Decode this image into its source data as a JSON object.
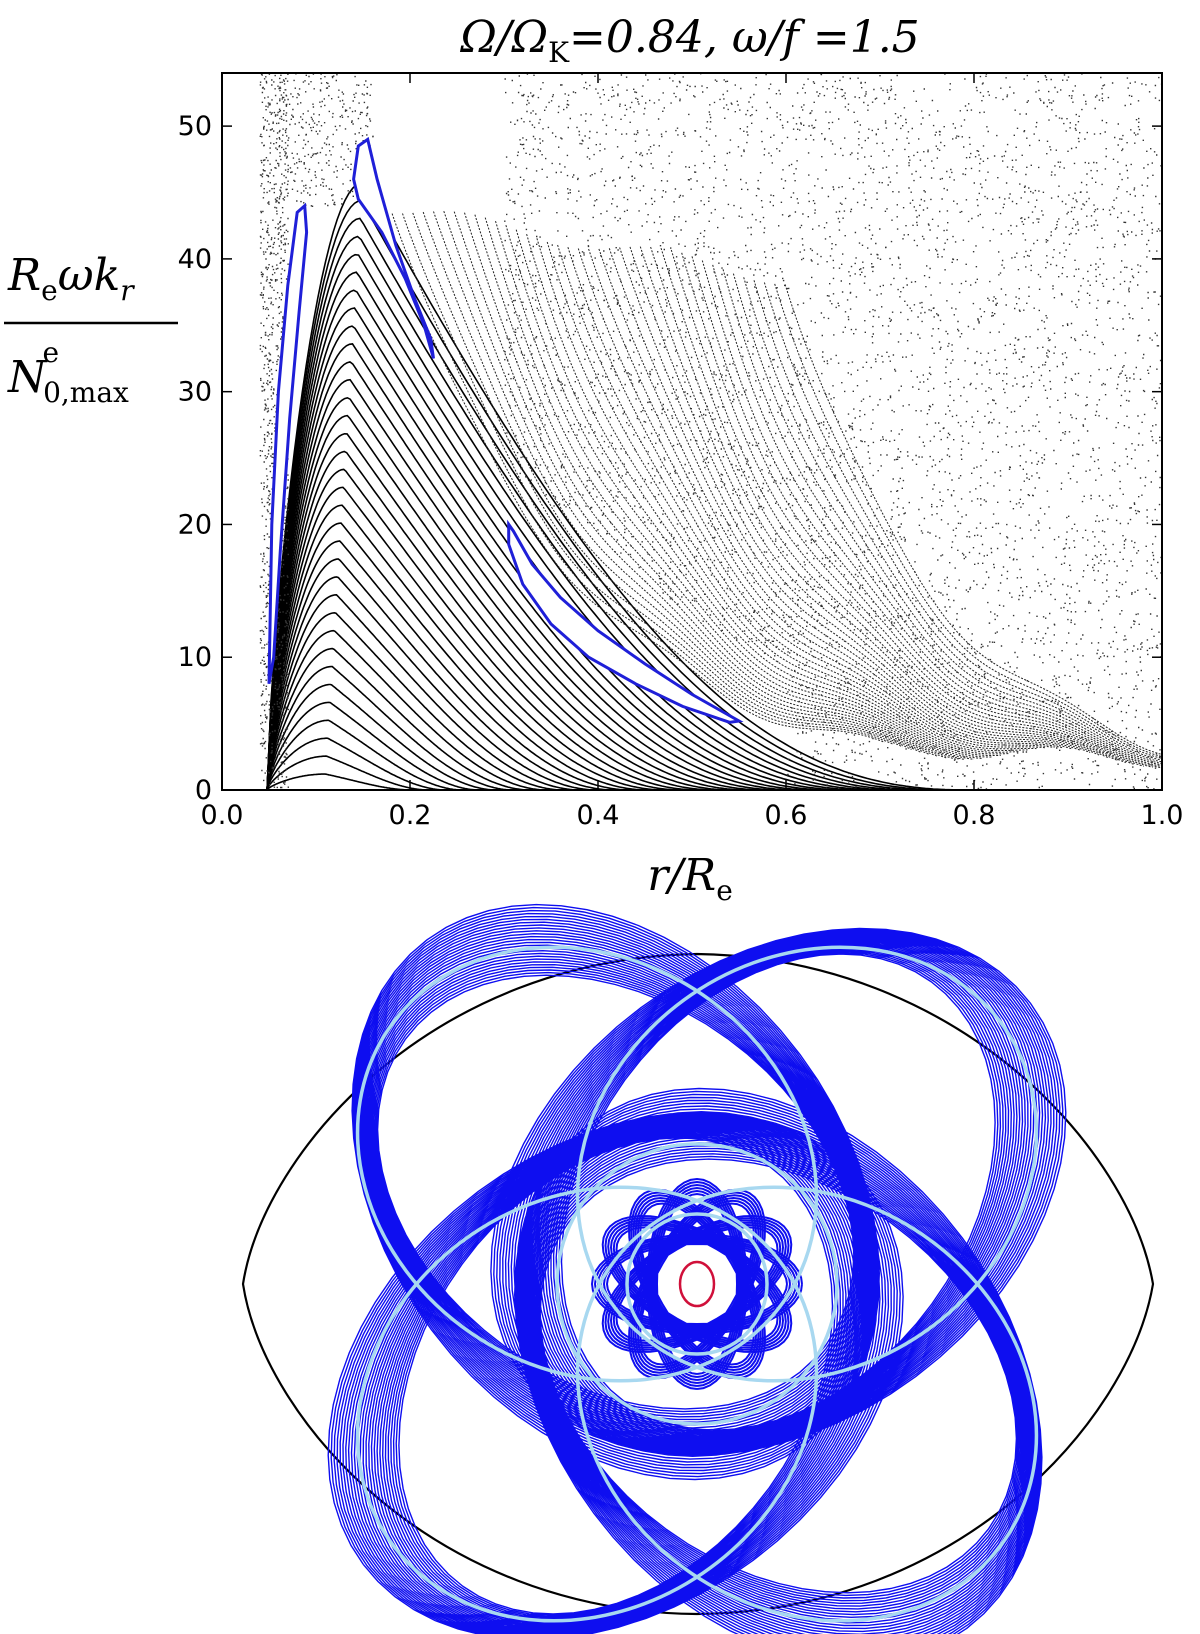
{
  "chart_data": [
    {
      "type": "scatter",
      "title": "Ω/Ω_K = 0.84, ω/f = 1.5",
      "title_parts": {
        "lhs": "Ω/Ω",
        "lhs_sub": "K",
        "lhs_val": "=0.84, ω/f =1.5"
      },
      "xlabel": "r/R_e",
      "xlabel_parts": {
        "main": "r/R",
        "sub": "e"
      },
      "ylabel": "R_e ω k_r / N^e_0,max",
      "ylabel_parts": {
        "num_main": "R",
        "num_sub": "e",
        "num_rest": "ωk",
        "num_sub2": "r",
        "den_main": "N",
        "den_sup": "e",
        "den_sub": "0,max"
      },
      "xlim": [
        0.0,
        1.0
      ],
      "ylim": [
        0,
        54
      ],
      "x_ticks": [
        "0.0",
        "0.2",
        "0.4",
        "0.6",
        "0.8",
        "1.0"
      ],
      "y_ticks": [
        "0",
        "10",
        "20",
        "30",
        "40",
        "50"
      ],
      "grid": false,
      "series": [
        {
          "role": "regular-orbits",
          "color": "#000000"
        },
        {
          "role": "chaotic-scatter",
          "color": "#000000"
        },
        {
          "role": "highlighted-islands",
          "color": "#1f1fd8",
          "islands": [
            {
              "points": [
                [
                  0.053,
                  20
                ],
                [
                  0.06,
                  30
                ],
                [
                  0.07,
                  38
                ],
                [
                  0.08,
                  43.5
                ],
                [
                  0.088,
                  44
                ],
                [
                  0.09,
                  42
                ],
                [
                  0.082,
                  36
                ],
                [
                  0.072,
                  28
                ],
                [
                  0.062,
                  18
                ],
                [
                  0.055,
                  10
                ],
                [
                  0.05,
                  8
                ]
              ]
            },
            {
              "points": [
                [
                  0.14,
                  46
                ],
                [
                  0.145,
                  48.5
                ],
                [
                  0.155,
                  49
                ],
                [
                  0.165,
                  46
                ],
                [
                  0.185,
                  41
                ],
                [
                  0.205,
                  37
                ],
                [
                  0.222,
                  34
                ],
                [
                  0.225,
                  32.5
                ],
                [
                  0.215,
                  35
                ],
                [
                  0.195,
                  38.5
                ],
                [
                  0.17,
                  42
                ],
                [
                  0.145,
                  44.5
                ]
              ]
            },
            {
              "points": [
                [
                  0.305,
                  20
                ],
                [
                  0.31,
                  19.5
                ],
                [
                  0.33,
                  17
                ],
                [
                  0.36,
                  14.5
                ],
                [
                  0.4,
                  12
                ],
                [
                  0.45,
                  9.5
                ],
                [
                  0.5,
                  7.2
                ],
                [
                  0.55,
                  5.2
                ],
                [
                  0.54,
                  5.1
                ],
                [
                  0.49,
                  6.3
                ],
                [
                  0.44,
                  8
                ],
                [
                  0.39,
                  10
                ],
                [
                  0.35,
                  12.5
                ],
                [
                  0.32,
                  15.5
                ],
                [
                  0.305,
                  18.5
                ]
              ]
            }
          ]
        }
      ]
    },
    {
      "type": "other",
      "title": "",
      "description_colors": {
        "outline": "#000000",
        "rays": "#0e0ef0",
        "periodic_orbit": "#a8d8f0",
        "core": "#d0103a"
      }
    }
  ]
}
